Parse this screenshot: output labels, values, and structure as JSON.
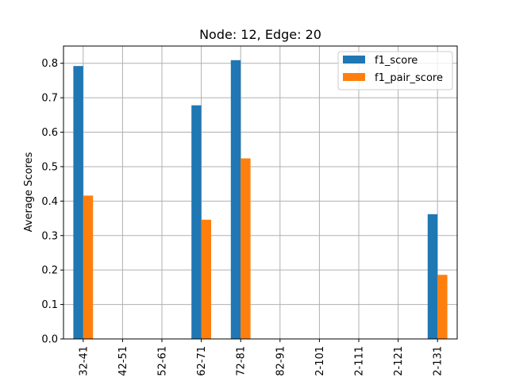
{
  "chart_data": {
    "type": "bar",
    "title": "Node: 12, Edge: 20",
    "xlabel": "",
    "ylabel": "Average Scores",
    "categories": [
      "32-41",
      "42-51",
      "52-61",
      "62-71",
      "72-81",
      "82-91",
      "2-101",
      "2-111",
      "2-121",
      "2-131"
    ],
    "series": [
      {
        "name": "f1_score",
        "color": "#1f77b4",
        "values": [
          0.792,
          0,
          0,
          0.678,
          0.809,
          0,
          0,
          0,
          0,
          0.362
        ]
      },
      {
        "name": "f1_pair_score",
        "color": "#ff7f0e",
        "values": [
          0.416,
          0,
          0,
          0.346,
          0.524,
          0,
          0,
          0,
          0,
          0.186
        ]
      }
    ],
    "ylim": [
      0,
      0.85
    ],
    "yticks": [
      "0.0",
      "0.1",
      "0.2",
      "0.3",
      "0.4",
      "0.5",
      "0.6",
      "0.7",
      "0.8"
    ],
    "grid": true,
    "legend_position": "top-right"
  }
}
